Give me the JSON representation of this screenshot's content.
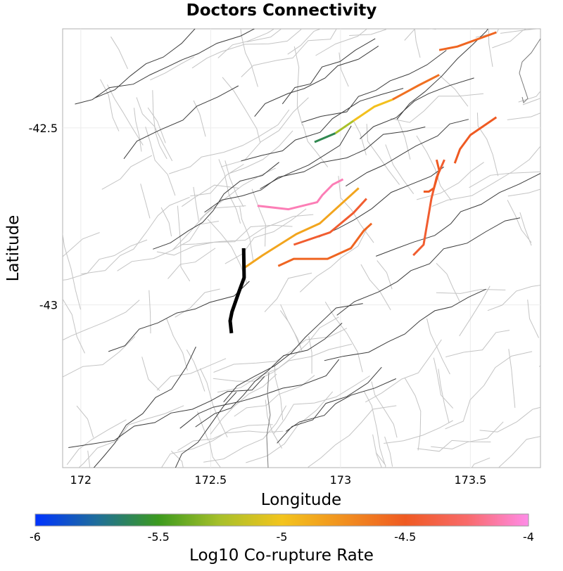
{
  "chart_data": {
    "type": "map",
    "title": "Doctors Connectivity",
    "xlabel": "Longitude",
    "ylabel": "Latitude",
    "xlim": [
      171.93,
      173.77
    ],
    "ylim": [
      -43.46,
      -42.22
    ],
    "xticks": [
      172,
      172.5,
      173,
      173.5
    ],
    "xtick_labels": [
      "172",
      "172.5",
      "173",
      "173.5"
    ],
    "yticks": [
      -42.5,
      -43
    ],
    "ytick_labels": [
      "-42.5",
      "-43"
    ],
    "grid": true,
    "colorbar": {
      "label": "Log10 Co-rupture Rate",
      "range": [
        -6,
        -4
      ],
      "ticks": [
        -6,
        -5.5,
        -5,
        -4.5,
        -4
      ],
      "tick_labels": [
        "-6",
        "-5.5",
        "-5",
        "-4.5",
        "-4"
      ],
      "colors": [
        "#0033ff",
        "#1f6e9a",
        "#3c9a1e",
        "#a8c02a",
        "#f3c41d",
        "#f1901f",
        "#ef5a22",
        "#f86a6a",
        "#ff8ce8"
      ]
    },
    "source_fault": {
      "name": "Doctors",
      "color": "#000000",
      "points": [
        [
          172.627,
          -42.84
        ],
        [
          172.629,
          -42.923
        ],
        [
          172.608,
          -42.965
        ],
        [
          172.582,
          -43.02
        ],
        [
          172.575,
          -43.045
        ],
        [
          172.58,
          -43.08
        ]
      ]
    },
    "connected_faults": [
      {
        "log_rate": -4.55,
        "points": [
          [
            173.38,
            -42.28
          ],
          [
            173.45,
            -42.27
          ],
          [
            173.6,
            -42.23
          ]
        ]
      },
      {
        "log_rate": -4.6,
        "points": [
          [
            173.2,
            -42.42
          ],
          [
            173.3,
            -42.38
          ],
          [
            173.38,
            -42.35
          ]
        ]
      },
      {
        "log_rate": -4.98,
        "points": [
          [
            173.05,
            -42.48
          ],
          [
            173.13,
            -42.44
          ],
          [
            173.2,
            -42.42
          ]
        ]
      },
      {
        "log_rate": -5.25,
        "points": [
          [
            172.98,
            -42.515
          ],
          [
            173.05,
            -42.48
          ]
        ]
      },
      {
        "log_rate": -5.6,
        "points": [
          [
            172.9,
            -42.54
          ],
          [
            172.98,
            -42.515
          ]
        ]
      },
      {
        "log_rate": -4.5,
        "points": [
          [
            173.6,
            -42.47
          ],
          [
            173.5,
            -42.52
          ],
          [
            173.46,
            -42.56
          ],
          [
            173.44,
            -42.6
          ]
        ]
      },
      {
        "log_rate": -4.45,
        "points": [
          [
            173.4,
            -42.59
          ],
          [
            173.37,
            -42.64
          ],
          [
            173.35,
            -42.7
          ],
          [
            173.32,
            -42.83
          ],
          [
            173.28,
            -42.86
          ]
        ]
      },
      {
        "log_rate": -4.5,
        "points": [
          [
            173.37,
            -42.59
          ],
          [
            173.38,
            -42.62
          ],
          [
            173.36,
            -42.67
          ],
          [
            173.34,
            -42.68
          ],
          [
            173.32,
            -42.68
          ]
        ]
      },
      {
        "log_rate": -4.1,
        "points": [
          [
            172.68,
            -42.72
          ],
          [
            172.8,
            -42.73
          ],
          [
            172.91,
            -42.71
          ],
          [
            172.93,
            -42.69
          ],
          [
            172.97,
            -42.66
          ],
          [
            173.01,
            -42.645
          ]
        ]
      },
      {
        "log_rate": -4.45,
        "points": [
          [
            172.82,
            -42.83
          ],
          [
            172.96,
            -42.795
          ],
          [
            173.05,
            -42.74
          ],
          [
            173.1,
            -42.7
          ]
        ]
      },
      {
        "log_rate": -4.85,
        "points": [
          [
            172.63,
            -42.895
          ],
          [
            172.7,
            -42.86
          ],
          [
            172.83,
            -42.8
          ],
          [
            172.92,
            -42.77
          ],
          [
            173.07,
            -42.67
          ]
        ]
      },
      {
        "log_rate": -4.55,
        "points": [
          [
            172.76,
            -42.89
          ],
          [
            172.82,
            -42.87
          ],
          [
            172.95,
            -42.87
          ],
          [
            173.04,
            -42.84
          ],
          [
            173.09,
            -42.79
          ],
          [
            173.12,
            -42.77
          ]
        ]
      }
    ]
  }
}
